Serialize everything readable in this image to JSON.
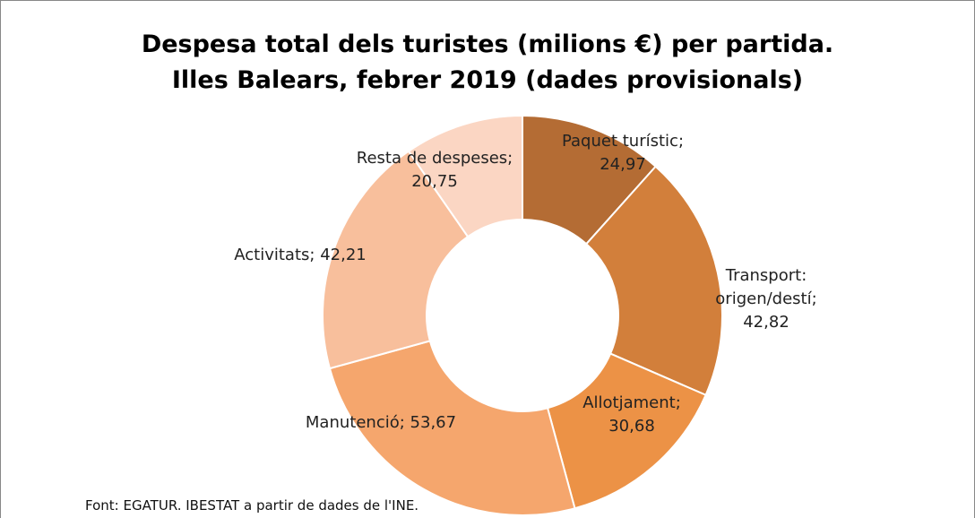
{
  "chart_data": {
    "type": "donut",
    "title": "Despesa total dels turistes (milions €) per partida.",
    "subtitle": "Illes Balears, febrer 2019 (dades provisionals)",
    "categories": [
      "Paquet turístic;",
      "Transport: origen/destí;",
      "Allotjament;",
      "Manutenció;",
      "Activitats;",
      "Resta de despeses;"
    ],
    "values": [
      24.97,
      42.82,
      30.68,
      53.67,
      42.21,
      20.75
    ],
    "value_labels": [
      "24,97",
      "42,82",
      "30,68",
      "53,67",
      "42,21",
      "20,75"
    ],
    "colors": [
      "#b46c34",
      "#d27f3b",
      "#ec9246",
      "#f5a66d",
      "#f8bf9c",
      "#fbd6c3"
    ],
    "source": "Font: EGATUR.  IBESTAT a partir de dades de l'INE."
  }
}
